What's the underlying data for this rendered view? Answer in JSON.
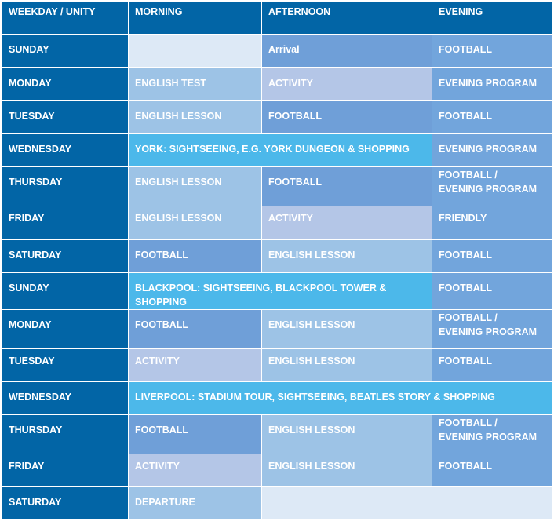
{
  "headers": [
    "WEEKDAY / UNITY",
    "MORNING",
    "AFTERNOON",
    "EVENING"
  ],
  "rows": [
    {
      "day": "SUNDAY",
      "morning": "",
      "afternoon": "Arrival",
      "evening": "FOOTBALL"
    },
    {
      "day": "MONDAY",
      "morning": "ENGLISH TEST",
      "afternoon": "ACTIVITY",
      "evening": "EVENING PROGRAM"
    },
    {
      "day": "TUESDAY",
      "morning": "ENGLISH LESSON",
      "afternoon": "FOOTBALL",
      "evening": "FOOTBALL"
    },
    {
      "day": "WEDNESDAY",
      "span": "YORK: SIGHTSEEING, E.G. YORK DUNGEON & SHOPPING",
      "evening": "EVENING PROGRAM"
    },
    {
      "day": "THURSDAY",
      "morning": "ENGLISH LESSON",
      "afternoon": "FOOTBALL",
      "evening_lines": [
        "FOOTBALL /",
        "EVENING PROGRAM"
      ]
    },
    {
      "day": "FRIDAY",
      "morning": "ENGLISH LESSON",
      "afternoon": "ACTIVITY",
      "evening": "FRIENDLY"
    },
    {
      "day": "SATURDAY",
      "morning": "FOOTBALL",
      "afternoon": "ENGLISH LESSON",
      "evening": "FOOTBALL"
    },
    {
      "day": "SUNDAY",
      "span": "BLACKPOOL: SIGHTSEEING, BLACKPOOL TOWER & SHOPPING",
      "evening": "FOOTBALL"
    },
    {
      "day": "MONDAY",
      "morning": "FOOTBALL",
      "afternoon": "ENGLISH LESSON",
      "evening_lines": [
        "FOOTBALL /",
        "EVENING PROGRAM"
      ]
    },
    {
      "day": "TUESDAY",
      "morning": "ACTIVITY",
      "afternoon": "ENGLISH LESSON",
      "evening": "FOOTBALL"
    },
    {
      "day": "WEDNESDAY",
      "span_all": "LIVERPOOL: STADIUM TOUR, SIGHTSEEING, BEATLES STORY & SHOPPING"
    },
    {
      "day": "THURSDAY",
      "morning": "FOOTBALL",
      "afternoon": "ENGLISH LESSON",
      "evening_lines": [
        "FOOTBALL /",
        "EVENING PROGRAM"
      ]
    },
    {
      "day": "FRIDAY",
      "morning": "ACTIVITY",
      "afternoon": "ENGLISH LESSON",
      "evening": "FOOTBALL"
    },
    {
      "day": "SATURDAY",
      "morning": "DEPARTURE",
      "rest_empty": ""
    }
  ],
  "colors": {
    "day_column": "#0265a6",
    "cyan_excursion": "#4cb8ea",
    "football": "#6f9fd8",
    "english": "#9dc3e6",
    "activity": "#b4c6e7",
    "empty": "#dde9f6"
  }
}
